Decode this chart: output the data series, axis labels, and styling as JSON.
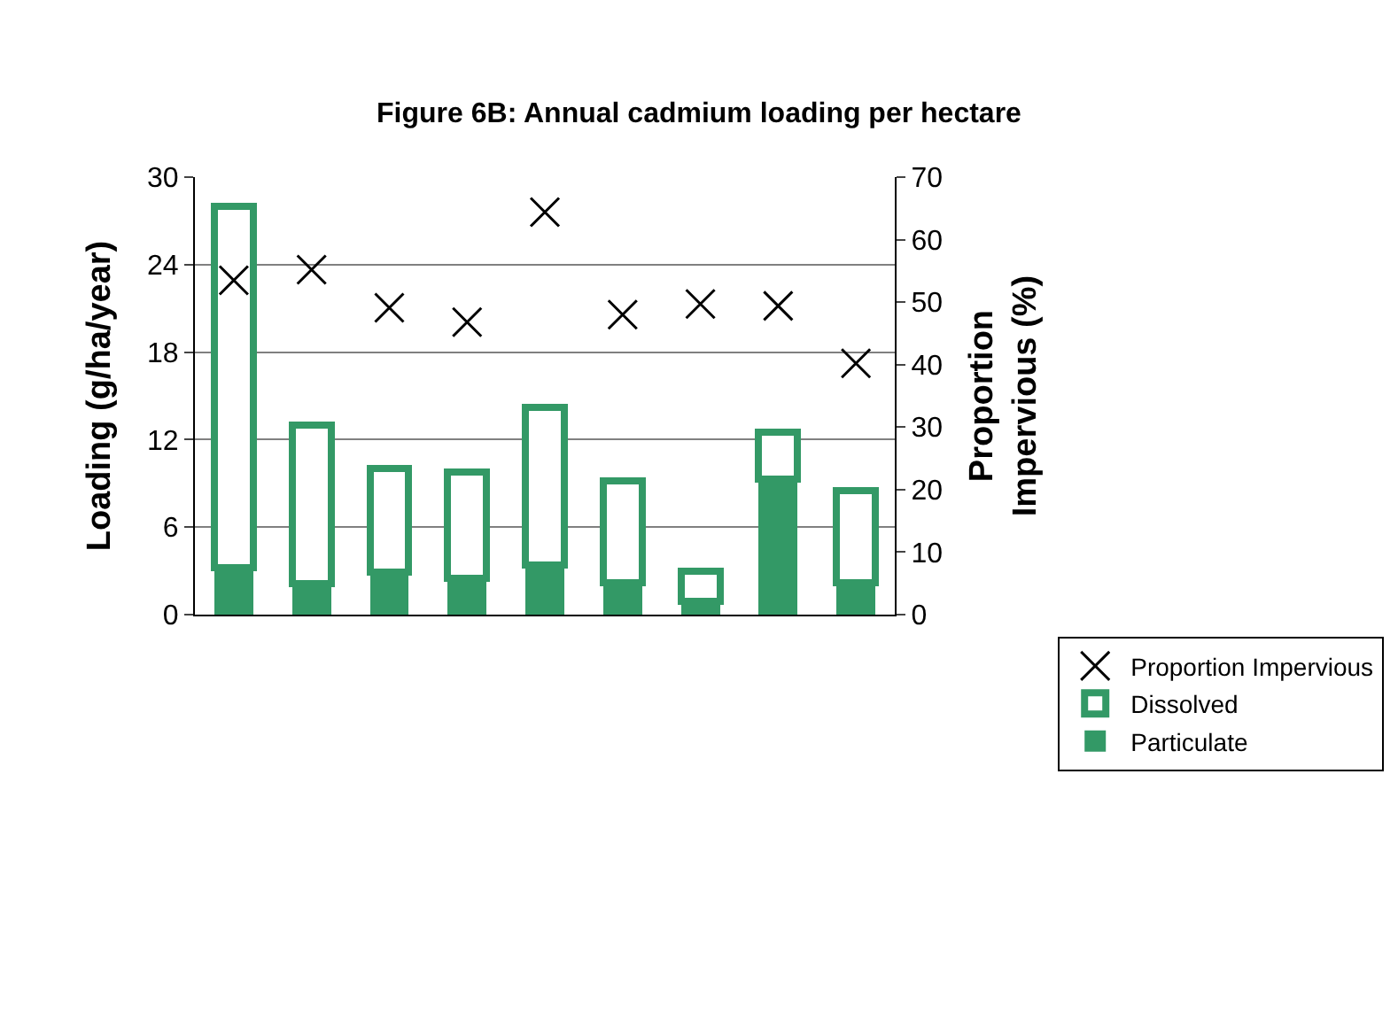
{
  "chart_data": {
    "type": "bar",
    "title": "Figure 6B: Annual cadmium loading per hectare",
    "ylabel": "Loading (g/ha/year)",
    "y2label": "Proportion Impervious (%)",
    "categories": [
      null,
      null,
      null,
      null,
      null,
      null,
      null,
      null,
      null
    ],
    "stacked": true,
    "series": [
      {
        "name": "Particulate",
        "color": "#339966",
        "values": [
          3.2,
          2.1,
          2.9,
          2.5,
          3.4,
          2.2,
          0.9,
          9.3,
          2.2
        ]
      },
      {
        "name": "Dissolved",
        "color": "#339966",
        "values": [
          24.8,
          10.9,
          7.1,
          7.3,
          10.8,
          7.0,
          2.1,
          3.2,
          6.3
        ]
      },
      {
        "name": "Proportion Impervious",
        "type": "scatter",
        "axis": "y2",
        "marker": "cross",
        "color": "#000000",
        "values": [
          53.5,
          55.2,
          49.1,
          46.8,
          64.4,
          48.0,
          49.7,
          49.4,
          40.2
        ]
      }
    ],
    "ylim": [
      0,
      30
    ],
    "yticks": [
      0,
      6,
      12,
      18,
      24,
      30
    ],
    "y2lim": [
      0,
      70
    ],
    "y2ticks": [
      0,
      10,
      20,
      30,
      40,
      50,
      60,
      70
    ],
    "grid": "y",
    "legend": "bottom right"
  }
}
